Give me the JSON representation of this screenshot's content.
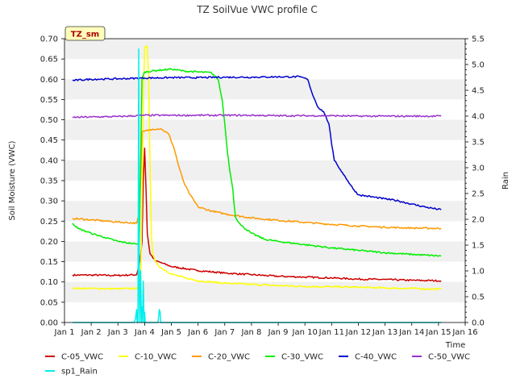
{
  "chart_data": {
    "type": "line",
    "title": "TZ SoilVue VWC profile C",
    "badge": "TZ_sm",
    "xlabel": "Time",
    "ylabel": "Soil Moisture (VWC)",
    "y2label": "Rain",
    "xlim": [
      1,
      16
    ],
    "ylim": [
      0,
      0.7
    ],
    "y2lim": [
      0,
      5.5
    ],
    "x_ticks": [
      {
        "v": 1,
        "label": "Jan 1"
      },
      {
        "v": 2,
        "label": "Jan 2"
      },
      {
        "v": 3,
        "label": "Jan 3"
      },
      {
        "v": 4,
        "label": "Jan 4"
      },
      {
        "v": 5,
        "label": "Jan 5"
      },
      {
        "v": 6,
        "label": "Jan 6"
      },
      {
        "v": 7,
        "label": "Jan 7"
      },
      {
        "v": 8,
        "label": "Jan 8"
      },
      {
        "v": 9,
        "label": "Jan 9"
      },
      {
        "v": 10,
        "label": "Jan 10"
      },
      {
        "v": 11,
        "label": "Jan 11"
      },
      {
        "v": 12,
        "label": "Jan 12"
      },
      {
        "v": 13,
        "label": "Jan 13"
      },
      {
        "v": 14,
        "label": "Jan 14"
      },
      {
        "v": 15,
        "label": "Jan 15"
      },
      {
        "v": 16,
        "label": "Jan 16"
      }
    ],
    "y_ticks": [
      "0.00",
      "0.05",
      "0.10",
      "0.15",
      "0.20",
      "0.25",
      "0.30",
      "0.35",
      "0.40",
      "0.45",
      "0.50",
      "0.55",
      "0.60",
      "0.65",
      "0.70"
    ],
    "y2_ticks": [
      "0.0",
      "0.5",
      "1.0",
      "1.5",
      "2.0",
      "2.5",
      "3.0",
      "3.5",
      "4.0",
      "4.5",
      "5.0",
      "5.5"
    ],
    "grid": "horizontal bands",
    "legend_position": "bottom",
    "series": [
      {
        "name": "C-05_VWC",
        "color": "#cc0000",
        "axis": "left",
        "x": [
          1.3,
          2,
          3,
          3.7,
          3.8,
          3.85,
          3.9,
          3.95,
          4.0,
          4.05,
          4.1,
          4.2,
          4.4,
          4.6,
          5,
          6,
          7,
          8,
          9,
          10,
          11,
          12,
          13,
          14,
          15.1
        ],
        "y": [
          0.117,
          0.117,
          0.116,
          0.118,
          0.145,
          0.165,
          0.2,
          0.35,
          0.43,
          0.33,
          0.22,
          0.17,
          0.152,
          0.148,
          0.138,
          0.128,
          0.122,
          0.118,
          0.114,
          0.112,
          0.11,
          0.107,
          0.106,
          0.104,
          0.103
        ]
      },
      {
        "name": "C-10_VWC",
        "color": "#ffff00",
        "axis": "left",
        "x": [
          1.3,
          2,
          3,
          3.7,
          3.8,
          3.85,
          3.9,
          3.95,
          4.0,
          4.1,
          4.15,
          4.2,
          4.25,
          4.3,
          4.4,
          4.6,
          5,
          5.5,
          6,
          7,
          8,
          9,
          10,
          11,
          12,
          13,
          14,
          15.1
        ],
        "y": [
          0.084,
          0.084,
          0.083,
          0.084,
          0.095,
          0.1,
          0.3,
          0.55,
          0.68,
          0.682,
          0.6,
          0.4,
          0.22,
          0.17,
          0.15,
          0.135,
          0.12,
          0.11,
          0.103,
          0.097,
          0.094,
          0.091,
          0.089,
          0.088,
          0.087,
          0.085,
          0.084,
          0.082
        ]
      },
      {
        "name": "C-20_VWC",
        "color": "#ff9900",
        "axis": "left",
        "x": [
          1.3,
          2,
          3,
          3.7,
          3.8,
          3.85,
          3.9,
          4.0,
          4.3,
          4.6,
          4.9,
          5.1,
          5.3,
          5.5,
          5.7,
          6,
          6.5,
          7,
          8,
          9,
          10,
          11,
          12,
          13,
          14,
          15.1
        ],
        "y": [
          0.257,
          0.253,
          0.248,
          0.245,
          0.27,
          0.35,
          0.47,
          0.472,
          0.477,
          0.478,
          0.465,
          0.43,
          0.38,
          0.34,
          0.315,
          0.285,
          0.275,
          0.268,
          0.258,
          0.252,
          0.247,
          0.242,
          0.238,
          0.235,
          0.233,
          0.232
        ]
      },
      {
        "name": "C-30_VWC",
        "color": "#00ee00",
        "axis": "left",
        "x": [
          1.3,
          1.5,
          2,
          2.5,
          3,
          3.5,
          3.7,
          3.8,
          3.85,
          3.9,
          4.0,
          4.5,
          5,
          5.5,
          6,
          6.5,
          6.75,
          6.9,
          7.0,
          7.1,
          7.2,
          7.3,
          7.35,
          7.4,
          7.6,
          8,
          8.5,
          9,
          10,
          11,
          12,
          13,
          14,
          15.1
        ],
        "y": [
          0.245,
          0.232,
          0.22,
          0.21,
          0.2,
          0.195,
          0.193,
          0.2,
          0.4,
          0.6,
          0.618,
          0.622,
          0.625,
          0.62,
          0.618,
          0.616,
          0.6,
          0.55,
          0.49,
          0.42,
          0.37,
          0.33,
          0.29,
          0.26,
          0.24,
          0.22,
          0.205,
          0.2,
          0.192,
          0.184,
          0.178,
          0.172,
          0.168,
          0.164
        ]
      },
      {
        "name": "C-40_VWC",
        "color": "#0000cc",
        "axis": "left",
        "x": [
          1.3,
          2,
          3,
          4,
          5,
          6,
          7,
          8,
          9,
          9.8,
          10.1,
          10.3,
          10.5,
          10.7,
          10.9,
          11.0,
          11.1,
          11.2,
          11.4,
          11.6,
          11.8,
          12,
          12.5,
          13,
          13.5,
          14,
          14.5,
          15.1
        ],
        "y": [
          0.597,
          0.6,
          0.601,
          0.603,
          0.604,
          0.604,
          0.605,
          0.605,
          0.606,
          0.606,
          0.6,
          0.56,
          0.53,
          0.52,
          0.49,
          0.44,
          0.4,
          0.39,
          0.37,
          0.35,
          0.33,
          0.315,
          0.31,
          0.305,
          0.3,
          0.292,
          0.285,
          0.278
        ]
      },
      {
        "name": "C-50_VWC",
        "color": "#9933cc",
        "axis": "left",
        "x": [
          1.3,
          2,
          3,
          4,
          5,
          6,
          7,
          8,
          9,
          10,
          11,
          12,
          13,
          14,
          15.1
        ],
        "y": [
          0.506,
          0.507,
          0.508,
          0.511,
          0.511,
          0.511,
          0.511,
          0.511,
          0.51,
          0.51,
          0.51,
          0.509,
          0.509,
          0.509,
          0.509
        ]
      },
      {
        "name": "sp1_Rain",
        "color": "#00eeee",
        "axis": "right",
        "x": [
          1.3,
          3.6,
          3.65,
          3.7,
          3.72,
          3.75,
          3.78,
          3.8,
          3.82,
          3.85,
          3.88,
          3.9,
          3.92,
          3.95,
          3.98,
          4.0,
          4.02,
          4.5,
          4.55,
          4.58,
          4.6,
          4.62,
          15.1
        ],
        "y": [
          0,
          0,
          0.05,
          0.25,
          0,
          0,
          5.3,
          0.5,
          0,
          1.0,
          0,
          0.3,
          0,
          0.8,
          0,
          0.2,
          0,
          0,
          0.25,
          0.2,
          0,
          0,
          0
        ]
      }
    ]
  }
}
